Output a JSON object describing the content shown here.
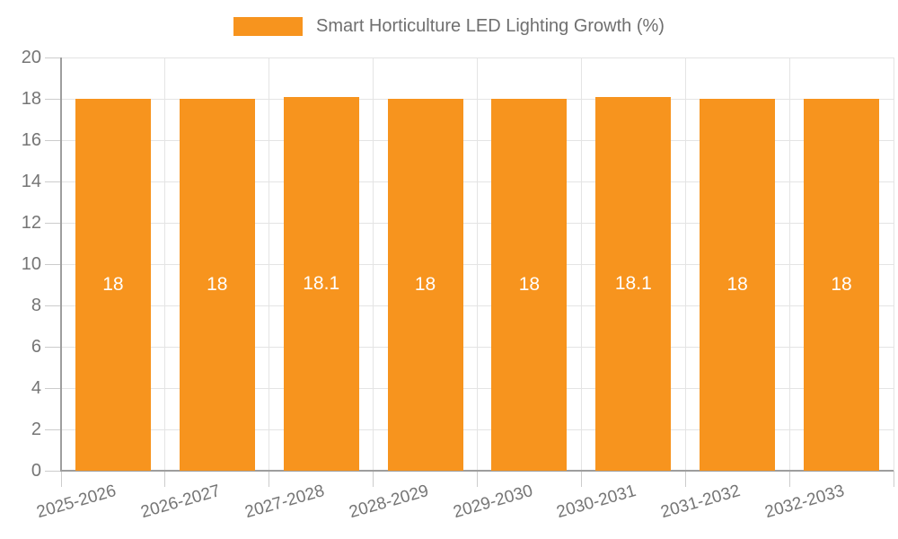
{
  "legend": {
    "label": "Smart Horticulture LED Lighting Growth (%)"
  },
  "chart_data": {
    "type": "bar",
    "title": "Smart Horticulture LED Lighting Growth (%)",
    "categories": [
      "2025-2026",
      "2026-2027",
      "2027-2028",
      "2028-2029",
      "2029-2030",
      "2030-2031",
      "2031-2032",
      "2032-2033"
    ],
    "values": [
      18,
      18,
      18.1,
      18,
      18,
      18.1,
      18,
      18
    ],
    "value_labels": [
      "18",
      "18",
      "18.1",
      "18",
      "18",
      "18.1",
      "18",
      "18"
    ],
    "xlabel": "",
    "ylabel": "",
    "ylim": [
      0,
      20
    ],
    "yticks": [
      0,
      2,
      4,
      6,
      8,
      10,
      12,
      14,
      16,
      18,
      20
    ],
    "grid": true,
    "legend_position": "top-center",
    "colors": {
      "bar": "#F7941E",
      "value_label": "#FFFFFF",
      "axis_text": "#757575",
      "legend_text": "#6F6F6F",
      "gridline": "#E4E4E4",
      "tick": "#CCCCCC",
      "axis_line": "#9E9E9E",
      "background": "#FFFFFF"
    }
  }
}
